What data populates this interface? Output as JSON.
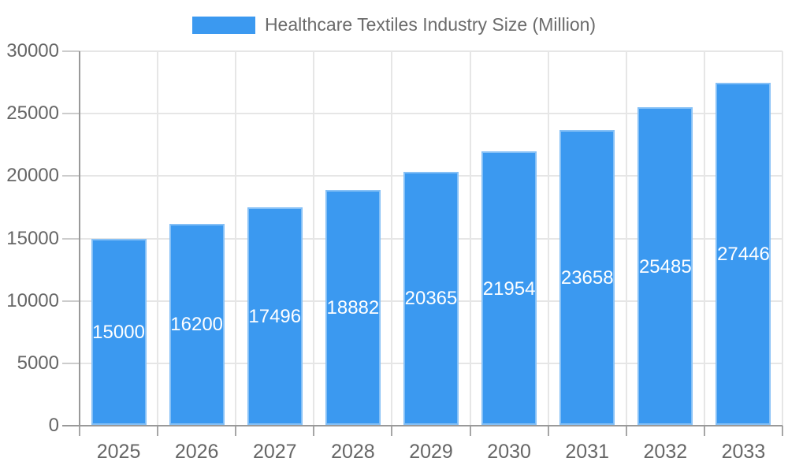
{
  "page": {
    "background": "#ffffff"
  },
  "legend": {
    "position": "top-center"
  },
  "chart_data": {
    "type": "bar",
    "title": "Healthcare Textiles Industry Size (Million)",
    "xlabel": "",
    "ylabel": "",
    "categories": [
      "2025",
      "2026",
      "2027",
      "2028",
      "2029",
      "2030",
      "2031",
      "2032",
      "2033"
    ],
    "values": [
      15000,
      16200,
      17496,
      18882,
      20365,
      21954,
      23658,
      25485,
      27446
    ],
    "ylim": [
      0,
      30000
    ],
    "yticks": [
      0,
      5000,
      10000,
      15000,
      20000,
      25000,
      30000
    ],
    "grid": true,
    "legend_position": "top-center",
    "value_labels": "inside-center",
    "colors": {
      "bar": "#3B99F0",
      "bar_value_label": "#FFFFFF",
      "axis_text": "#666666",
      "legend_text": "#6B6B6B",
      "axis_line": "#999999",
      "gridline": "#E6E6E6",
      "minor_tick": "#CCCCCC"
    }
  }
}
